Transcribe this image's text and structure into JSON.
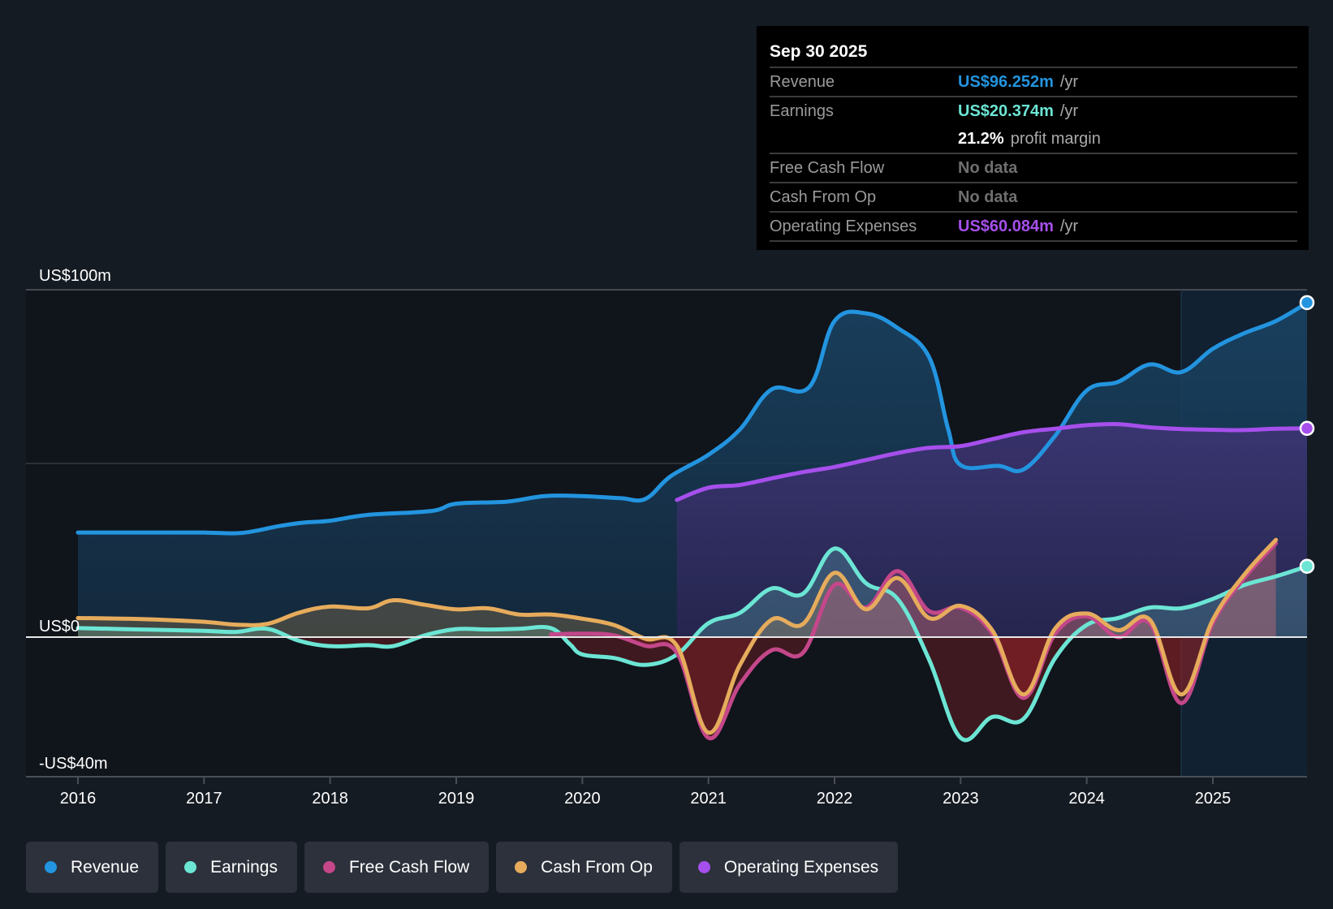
{
  "tooltip": {
    "date": "Sep 30 2025",
    "rows": [
      {
        "label": "Revenue",
        "value": "US$96.252m",
        "unit": "/yr",
        "color": "#2394df"
      },
      {
        "label": "Earnings",
        "value": "US$20.374m",
        "unit": "/yr",
        "color": "#6ce5d4"
      },
      {
        "label": "",
        "value": "21.2%",
        "unit": "profit margin",
        "color": "#ffffff"
      },
      {
        "label": "Free Cash Flow",
        "value": "No data",
        "unit": "",
        "color": "#6f6f6f"
      },
      {
        "label": "Cash From Op",
        "value": "No data",
        "unit": "",
        "color": "#6f6f6f"
      },
      {
        "label": "Operating Expenses",
        "value": "US$60.084m",
        "unit": "/yr",
        "color": "#a64fec"
      }
    ]
  },
  "legend": [
    {
      "label": "Revenue",
      "color": "#2394df"
    },
    {
      "label": "Earnings",
      "color": "#6ce5d4"
    },
    {
      "label": "Free Cash Flow",
      "color": "#c4478a"
    },
    {
      "label": "Cash From Op",
      "color": "#e6ac5c"
    },
    {
      "label": "Operating Expenses",
      "color": "#a64fec"
    }
  ],
  "chart_data": {
    "type": "area",
    "title": "",
    "xlabel": "",
    "ylabel": "",
    "x_ticks": [
      "2016",
      "2017",
      "2018",
      "2019",
      "2020",
      "2021",
      "2022",
      "2023",
      "2024",
      "2025"
    ],
    "y_tick_labels": [
      {
        "value": 100,
        "label": "US$100m"
      },
      {
        "value": 0,
        "label": "US$0"
      },
      {
        "value": -40,
        "label": "-US$40m"
      }
    ],
    "ylim": [
      -40,
      100
    ],
    "xlim": [
      2015.6,
      2025.75
    ],
    "highlight_start": 2024.75,
    "grid": true,
    "legend_position": "bottom-left",
    "series": [
      {
        "name": "Revenue",
        "color": "#2394df",
        "end_marker": true,
        "x": [
          2016,
          2016.5,
          2017,
          2017.3,
          2017.6,
          2017.8,
          2018,
          2018.3,
          2018.8,
          2019,
          2019.4,
          2019.7,
          2020,
          2020.3,
          2020.5,
          2020.7,
          2021,
          2021.25,
          2021.5,
          2021.8,
          2022,
          2022.25,
          2022.5,
          2022.75,
          2022.9,
          2023,
          2023.3,
          2023.5,
          2023.75,
          2024,
          2024.25,
          2024.5,
          2024.75,
          2025,
          2025.25,
          2025.5,
          2025.75
        ],
        "y": [
          30.1,
          30.1,
          30.1,
          30.0,
          32.0,
          33.0,
          33.5,
          35.2,
          36.3,
          38.4,
          39.0,
          40.6,
          40.6,
          40.0,
          39.8,
          46.3,
          52.5,
          59.8,
          71.3,
          72.0,
          91.0,
          93.2,
          89.0,
          80.6,
          60.0,
          49.5,
          49.3,
          48.3,
          58.0,
          71.0,
          73.5,
          78.5,
          76.3,
          83.0,
          87.5,
          91.0,
          96.3
        ]
      },
      {
        "name": "Operating Expenses",
        "color": "#a64fec",
        "end_marker": true,
        "x": [
          2020.75,
          2021,
          2021.25,
          2021.5,
          2021.75,
          2022,
          2022.25,
          2022.5,
          2022.75,
          2023,
          2023.25,
          2023.5,
          2023.75,
          2024,
          2024.25,
          2024.5,
          2024.75,
          2025,
          2025.25,
          2025.5,
          2025.75
        ],
        "y": [
          39.5,
          43.0,
          43.8,
          45.7,
          47.5,
          49.0,
          51.0,
          53.0,
          54.5,
          55.0,
          57.0,
          59.0,
          60.0,
          61.0,
          61.3,
          60.4,
          59.9,
          59.7,
          59.6,
          60.0,
          60.1
        ]
      },
      {
        "name": "Earnings",
        "color": "#6ce5d4",
        "end_marker": true,
        "x": [
          2016,
          2016.5,
          2017,
          2017.25,
          2017.5,
          2017.75,
          2018,
          2018.3,
          2018.5,
          2018.75,
          2019,
          2019.25,
          2019.5,
          2019.75,
          2019.9,
          2020,
          2020.25,
          2020.5,
          2020.75,
          2021,
          2021.25,
          2021.5,
          2021.75,
          2022,
          2022.25,
          2022.5,
          2022.75,
          2023,
          2023.25,
          2023.5,
          2023.75,
          2024,
          2024.25,
          2024.5,
          2024.75,
          2025,
          2025.25,
          2025.5,
          2025.75
        ],
        "y": [
          2.6,
          2.2,
          1.8,
          1.5,
          2.4,
          -1.0,
          -2.6,
          -2.3,
          -2.6,
          0.5,
          2.3,
          2.2,
          2.4,
          2.6,
          -2.0,
          -5.0,
          -6.0,
          -8.0,
          -5.0,
          4.0,
          7.0,
          14.0,
          12.5,
          25.5,
          15.5,
          11.0,
          -6.5,
          -29.0,
          -23.0,
          -23.5,
          -6.0,
          3.5,
          5.5,
          8.5,
          8.3,
          11.0,
          15.0,
          17.5,
          20.4
        ]
      },
      {
        "name": "Free Cash Flow",
        "color": "#c4478a",
        "end_marker": false,
        "x": [
          2019.75,
          2020,
          2020.25,
          2020.5,
          2020.75,
          2021,
          2021.25,
          2021.5,
          2021.75,
          2022,
          2022.25,
          2022.5,
          2022.75,
          2023,
          2023.25,
          2023.5,
          2023.75,
          2024,
          2024.25,
          2024.5,
          2024.75,
          2025,
          2025.25,
          2025.5
        ],
        "y": [
          0.8,
          1.0,
          0.5,
          -2.5,
          -4.5,
          -29.0,
          -13.5,
          -3.8,
          -4.5,
          15.0,
          8.5,
          19.0,
          7.5,
          8.5,
          1.0,
          -17.5,
          1.0,
          6.0,
          0.0,
          4.0,
          -19.0,
          4.0,
          17.0,
          27.0
        ]
      },
      {
        "name": "Cash From Op",
        "color": "#e6ac5c",
        "end_marker": false,
        "x": [
          2016,
          2016.5,
          2017,
          2017.25,
          2017.5,
          2017.75,
          2018,
          2018.3,
          2018.5,
          2018.75,
          2019,
          2019.25,
          2019.5,
          2019.75,
          2020,
          2020.25,
          2020.5,
          2020.75,
          2021,
          2021.25,
          2021.5,
          2021.75,
          2022,
          2022.25,
          2022.5,
          2022.75,
          2023,
          2023.25,
          2023.5,
          2023.75,
          2024,
          2024.25,
          2024.5,
          2024.75,
          2025,
          2025.25,
          2025.5
        ],
        "y": [
          5.5,
          5.2,
          4.4,
          3.6,
          3.8,
          7.0,
          8.8,
          8.3,
          10.6,
          9.3,
          8.0,
          8.3,
          6.5,
          6.5,
          5.3,
          3.5,
          -0.5,
          -2.5,
          -27.5,
          -8.0,
          5.0,
          3.8,
          18.5,
          8.0,
          17.0,
          5.5,
          9.0,
          2.0,
          -16.5,
          2.5,
          6.8,
          2.0,
          5.0,
          -16.5,
          5.0,
          18.0,
          28.0
        ]
      }
    ]
  }
}
